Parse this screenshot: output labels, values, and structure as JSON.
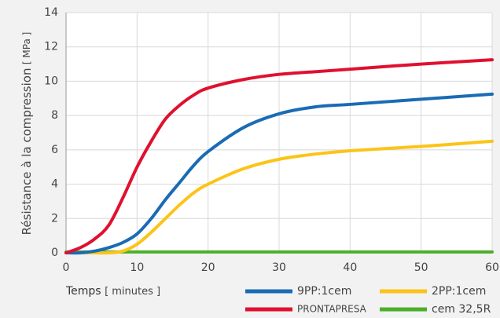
{
  "chart_data": {
    "type": "line",
    "ylabel": "Résistance à la compression",
    "ylabel_unit": "[ MPa ]",
    "xlabel": "Temps",
    "xlabel_unit": "[ minutes ]",
    "x": [
      0,
      2,
      4,
      6,
      8,
      10,
      12,
      14,
      16,
      18,
      20,
      25,
      30,
      35,
      40,
      50,
      60
    ],
    "series": [
      {
        "name": "9PP:1cem",
        "color": "#1a6bb5",
        "values": [
          0,
          0,
          0.1,
          0.3,
          0.6,
          1.1,
          2.0,
          3.1,
          4.1,
          5.1,
          5.9,
          7.3,
          8.1,
          8.5,
          8.65,
          8.95,
          9.25
        ]
      },
      {
        "name": "2PP:1cem",
        "color": "#fcc419",
        "values": [
          0,
          0,
          0,
          0,
          0.1,
          0.5,
          1.2,
          2.0,
          2.8,
          3.5,
          4.0,
          4.9,
          5.45,
          5.75,
          5.95,
          6.2,
          6.5
        ]
      },
      {
        "name": "PRONTAPRESA",
        "color": "#e0102f",
        "values": [
          0,
          0.3,
          0.8,
          1.6,
          3.2,
          5.0,
          6.5,
          7.8,
          8.6,
          9.2,
          9.6,
          10.1,
          10.4,
          10.55,
          10.7,
          11.0,
          11.25
        ]
      },
      {
        "name": "cem 32,5R",
        "color": "#4caf2a",
        "values": [
          0.05,
          0.05,
          0.05,
          0.05,
          0.05,
          0.05,
          0.05,
          0.05,
          0.05,
          0.05,
          0.05,
          0.05,
          0.05,
          0.05,
          0.05,
          0.05,
          0.05
        ]
      }
    ],
    "xlim": [
      0,
      60
    ],
    "xticks": [
      0,
      10,
      20,
      30,
      40,
      50,
      60
    ],
    "ylim": [
      0,
      14
    ],
    "yticks": [
      0,
      2,
      4,
      6,
      8,
      10,
      12,
      14
    ],
    "grid": true
  }
}
